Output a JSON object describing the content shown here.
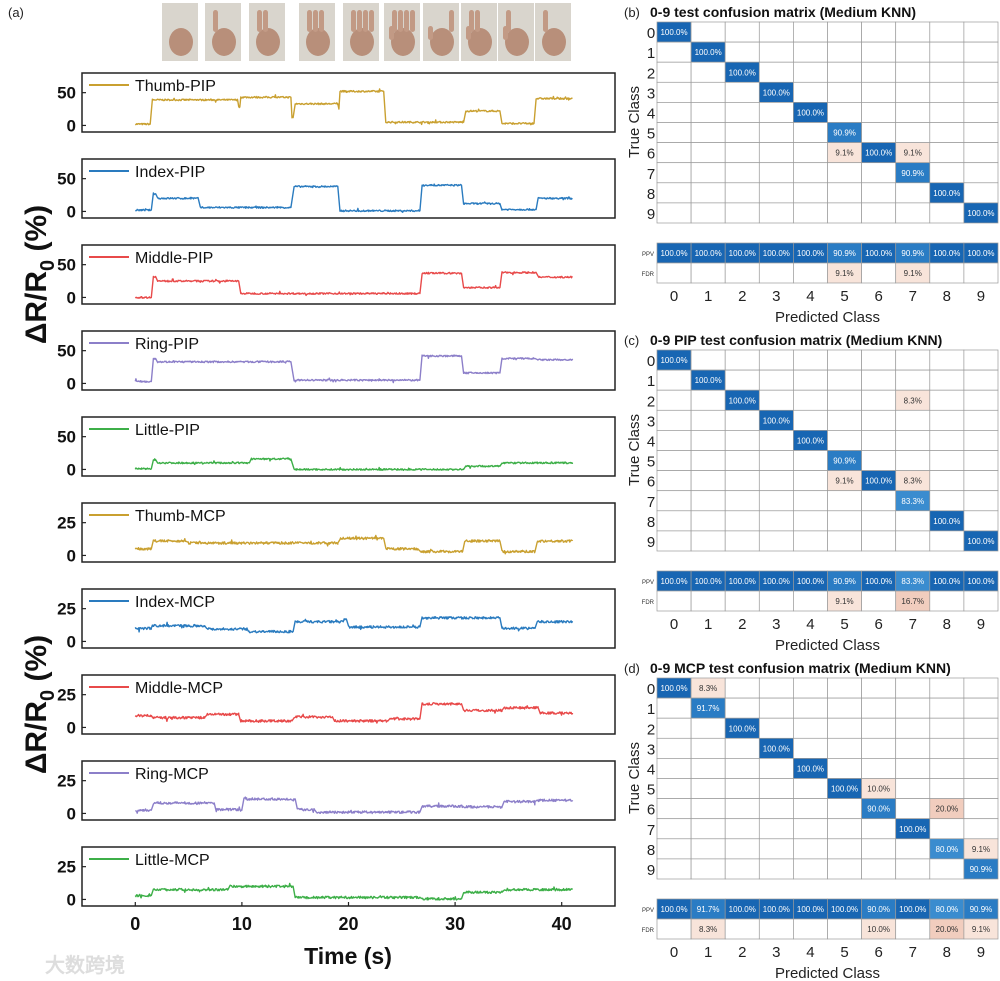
{
  "panel_labels": {
    "a": "(a)",
    "b": "(b)",
    "c": "(c)",
    "d": "(d)"
  },
  "watermark": "大数跨境",
  "hand_gestures": [
    "0",
    "1",
    "2",
    "3",
    "4",
    "5",
    "6",
    "7",
    "8",
    "9"
  ],
  "chart_data": [
    {
      "type": "line",
      "id": "a-pip",
      "ylabel": "ΔR/R0 (%)",
      "ylabel_main": "ΔR/R",
      "ylabel_sub": "0",
      "ylabel_unit": " (%)",
      "xlim": [
        -5,
        45
      ],
      "ylim": [
        -10,
        80
      ],
      "yticks": [
        "0",
        "50"
      ],
      "ytick_values": [
        0,
        50
      ],
      "series": [
        {
          "name": "Thumb-PIP",
          "color": "#C9A030",
          "levels": [
            [
              0,
              1.4,
              2
            ],
            [
              1.6,
              9.6,
              39
            ],
            [
              9.7,
              9.8,
              28
            ],
            [
              9.9,
              14.6,
              43
            ],
            [
              14.7,
              14.8,
              12
            ],
            [
              15,
              19,
              33
            ],
            [
              19.1,
              19.1,
              25
            ],
            [
              19.2,
              23.3,
              52
            ],
            [
              23.5,
              30.8,
              5
            ],
            [
              31,
              34.2,
              22
            ],
            [
              34.4,
              37.4,
              3
            ],
            [
              37.6,
              41,
              41
            ]
          ]
        },
        {
          "name": "Index-PIP",
          "color": "#2A7BBF",
          "levels": [
            [
              0,
              1.5,
              2
            ],
            [
              1.7,
              1.9,
              27
            ],
            [
              2.1,
              5.9,
              20
            ],
            [
              6.1,
              14.6,
              6
            ],
            [
              14.9,
              19,
              38
            ],
            [
              19.2,
              26.7,
              1
            ],
            [
              26.9,
              30.6,
              40
            ],
            [
              30.8,
              34.2,
              12
            ],
            [
              34.4,
              37.6,
              3
            ],
            [
              37.8,
              41,
              20
            ]
          ]
        },
        {
          "name": "Middle-PIP",
          "color": "#E84A4A",
          "levels": [
            [
              0,
              1.5,
              0
            ],
            [
              1.7,
              1.9,
              32
            ],
            [
              2.1,
              9.7,
              25
            ],
            [
              9.9,
              26.7,
              6
            ],
            [
              26.9,
              30.6,
              37
            ],
            [
              30.8,
              34.2,
              15
            ],
            [
              34.4,
              37.6,
              38
            ],
            [
              37.8,
              41,
              31
            ]
          ]
        },
        {
          "name": "Ring-PIP",
          "color": "#8C7FC9",
          "levels": [
            [
              0,
              1.5,
              3
            ],
            [
              1.7,
              1.9,
              38
            ],
            [
              2.1,
              14.6,
              33
            ],
            [
              14.9,
              26.7,
              5
            ],
            [
              26.9,
              30.6,
              42
            ],
            [
              30.8,
              34.2,
              16
            ],
            [
              34.4,
              37.5,
              38
            ],
            [
              37.7,
              41,
              36
            ]
          ]
        },
        {
          "name": "Little-PIP",
          "color": "#3DAF48",
          "levels": [
            [
              0,
              1.5,
              1
            ],
            [
              1.7,
              1.9,
              15
            ],
            [
              2.1,
              10.7,
              10
            ],
            [
              10.9,
              14.6,
              16
            ],
            [
              14.9,
              30.8,
              0
            ],
            [
              31,
              34.2,
              5
            ],
            [
              34.4,
              41,
              10
            ]
          ]
        }
      ]
    },
    {
      "type": "line",
      "id": "a-mcp",
      "ylabel": "ΔR/R0 (%)",
      "ylabel_main": "ΔR/R",
      "ylabel_sub": "0",
      "ylabel_unit": " (%)",
      "xlabel": "Time (s)",
      "xlim": [
        -5,
        45
      ],
      "xticks": [
        "0",
        "10",
        "20",
        "30",
        "40"
      ],
      "xtick_values": [
        0,
        10,
        20,
        30,
        40
      ],
      "ylim": [
        -5,
        40
      ],
      "yticks": [
        "0",
        "25"
      ],
      "ytick_values": [
        0,
        25
      ],
      "series": [
        {
          "name": "Thumb-MCP",
          "color": "#C9A030",
          "levels": [
            [
              0,
              1.5,
              5
            ],
            [
              1.7,
              4.7,
              11
            ],
            [
              4.9,
              19,
              9.5
            ],
            [
              19.2,
              23.3,
              13
            ],
            [
              23.5,
              26.5,
              5
            ],
            [
              26.7,
              30.7,
              3
            ],
            [
              30.9,
              34.2,
              11
            ],
            [
              34.4,
              37.5,
              3
            ],
            [
              37.7,
              41,
              11
            ]
          ]
        },
        {
          "name": "Index-MCP",
          "color": "#2A7BBF",
          "levels": [
            [
              0,
              1.5,
              10
            ],
            [
              1.6,
              6.5,
              12
            ],
            [
              6.7,
              10.5,
              9.5
            ],
            [
              10.6,
              14.8,
              7.5
            ],
            [
              15,
              19.5,
              15
            ],
            [
              19.6,
              19.8,
              17
            ],
            [
              20,
              26.7,
              11
            ],
            [
              26.9,
              34.2,
              18
            ],
            [
              34.4,
              37.5,
              10
            ],
            [
              37.7,
              41,
              15
            ]
          ]
        },
        {
          "name": "Middle-MCP",
          "color": "#E84A4A",
          "levels": [
            [
              0,
              1.5,
              9
            ],
            [
              1.7,
              6.5,
              7.5
            ],
            [
              6.7,
              9.7,
              10
            ],
            [
              9.9,
              14.7,
              5
            ],
            [
              14.9,
              18.5,
              8
            ],
            [
              18.7,
              23.7,
              5
            ],
            [
              23.9,
              26.7,
              6.5
            ],
            [
              26.9,
              30.6,
              18
            ],
            [
              30.8,
              34.4,
              13
            ],
            [
              34.6,
              37.8,
              15
            ],
            [
              38,
              41,
              11
            ]
          ]
        },
        {
          "name": "Ring-MCP",
          "color": "#8C7FC9",
          "levels": [
            [
              0,
              1.5,
              2.5
            ],
            [
              1.7,
              7.4,
              8
            ],
            [
              7.6,
              10,
              3
            ],
            [
              10.2,
              15,
              11
            ],
            [
              15.2,
              16.8,
              3
            ],
            [
              17,
              26.7,
              1
            ],
            [
              26.9,
              30.7,
              5.5
            ],
            [
              30.9,
              34.4,
              5
            ],
            [
              34.6,
              37.5,
              9
            ],
            [
              37.7,
              41,
              10
            ]
          ]
        },
        {
          "name": "Little-MCP",
          "color": "#3DAF48",
          "levels": [
            [
              0,
              1.5,
              3
            ],
            [
              1.7,
              8.7,
              7.5
            ],
            [
              8.9,
              14.8,
              10
            ],
            [
              15,
              26.7,
              1.5
            ],
            [
              26.9,
              30.6,
              0.5
            ],
            [
              30.8,
              34.4,
              5.5
            ],
            [
              34.6,
              41,
              7.5
            ]
          ]
        }
      ]
    },
    {
      "type": "heatmap",
      "id": "b",
      "title": "0-9 test confusion matrix (Medium KNN)",
      "xlabel": "Predicted Class",
      "ylabel": "True Class",
      "classes": [
        "0",
        "1",
        "2",
        "3",
        "4",
        "5",
        "6",
        "7",
        "8",
        "9"
      ],
      "matrix": [
        [
          "100.0%",
          "",
          "",
          "",
          "",
          "",
          "",
          "",
          "",
          ""
        ],
        [
          "",
          "100.0%",
          "",
          "",
          "",
          "",
          "",
          "",
          "",
          ""
        ],
        [
          "",
          "",
          "100.0%",
          "",
          "",
          "",
          "",
          "",
          "",
          ""
        ],
        [
          "",
          "",
          "",
          "100.0%",
          "",
          "",
          "",
          "",
          "",
          ""
        ],
        [
          "",
          "",
          "",
          "",
          "100.0%",
          "",
          "",
          "",
          "",
          ""
        ],
        [
          "",
          "",
          "",
          "",
          "",
          "90.9%",
          "",
          "",
          "",
          ""
        ],
        [
          "",
          "",
          "",
          "",
          "",
          "9.1%",
          "100.0%",
          "9.1%",
          "",
          ""
        ],
        [
          "",
          "",
          "",
          "",
          "",
          "",
          "",
          "90.9%",
          "",
          ""
        ],
        [
          "",
          "",
          "",
          "",
          "",
          "",
          "",
          "",
          "100.0%",
          ""
        ],
        [
          "",
          "",
          "",
          "",
          "",
          "",
          "",
          "",
          "",
          "100.0%"
        ]
      ],
      "ppv_label": "PPV",
      "fdr_label": "FDR",
      "ppv": [
        "100.0%",
        "100.0%",
        "100.0%",
        "100.0%",
        "100.0%",
        "90.9%",
        "100.0%",
        "90.9%",
        "100.0%",
        "100.0%"
      ],
      "fdr": [
        "",
        "",
        "",
        "",
        "",
        "9.1%",
        "",
        "9.1%",
        "",
        ""
      ]
    },
    {
      "type": "heatmap",
      "id": "c",
      "title": "0-9 PIP test confusion matrix (Medium KNN)",
      "xlabel": "Predicted Class",
      "ylabel": "True Class",
      "classes": [
        "0",
        "1",
        "2",
        "3",
        "4",
        "5",
        "6",
        "7",
        "8",
        "9"
      ],
      "matrix": [
        [
          "100.0%",
          "",
          "",
          "",
          "",
          "",
          "",
          "",
          "",
          ""
        ],
        [
          "",
          "100.0%",
          "",
          "",
          "",
          "",
          "",
          "",
          "",
          ""
        ],
        [
          "",
          "",
          "100.0%",
          "",
          "",
          "",
          "",
          "8.3%",
          "",
          ""
        ],
        [
          "",
          "",
          "",
          "100.0%",
          "",
          "",
          "",
          "",
          "",
          ""
        ],
        [
          "",
          "",
          "",
          "",
          "100.0%",
          "",
          "",
          "",
          "",
          ""
        ],
        [
          "",
          "",
          "",
          "",
          "",
          "90.9%",
          "",
          "",
          "",
          ""
        ],
        [
          "",
          "",
          "",
          "",
          "",
          "9.1%",
          "100.0%",
          "8.3%",
          "",
          ""
        ],
        [
          "",
          "",
          "",
          "",
          "",
          "",
          "",
          "83.3%",
          "",
          ""
        ],
        [
          "",
          "",
          "",
          "",
          "",
          "",
          "",
          "",
          "100.0%",
          ""
        ],
        [
          "",
          "",
          "",
          "",
          "",
          "",
          "",
          "",
          "",
          "100.0%"
        ]
      ],
      "ppv_label": "PPV",
      "fdr_label": "FDR",
      "ppv": [
        "100.0%",
        "100.0%",
        "100.0%",
        "100.0%",
        "100.0%",
        "90.9%",
        "100.0%",
        "83.3%",
        "100.0%",
        "100.0%"
      ],
      "fdr": [
        "",
        "",
        "",
        "",
        "",
        "9.1%",
        "",
        "16.7%",
        "",
        ""
      ]
    },
    {
      "type": "heatmap",
      "id": "d",
      "title": "0-9 MCP test confusion matrix (Medium KNN)",
      "xlabel": "Predicted Class",
      "ylabel": "True Class",
      "classes": [
        "0",
        "1",
        "2",
        "3",
        "4",
        "5",
        "6",
        "7",
        "8",
        "9"
      ],
      "matrix": [
        [
          "100.0%",
          "8.3%",
          "",
          "",
          "",
          "",
          "",
          "",
          "",
          ""
        ],
        [
          "",
          "91.7%",
          "",
          "",
          "",
          "",
          "",
          "",
          "",
          ""
        ],
        [
          "",
          "",
          "100.0%",
          "",
          "",
          "",
          "",
          "",
          "",
          ""
        ],
        [
          "",
          "",
          "",
          "100.0%",
          "",
          "",
          "",
          "",
          "",
          ""
        ],
        [
          "",
          "",
          "",
          "",
          "100.0%",
          "",
          "",
          "",
          "",
          ""
        ],
        [
          "",
          "",
          "",
          "",
          "",
          "100.0%",
          "10.0%",
          "",
          "",
          ""
        ],
        [
          "",
          "",
          "",
          "",
          "",
          "",
          "90.0%",
          "",
          "20.0%",
          ""
        ],
        [
          "",
          "",
          "",
          "",
          "",
          "",
          "",
          "100.0%",
          "",
          ""
        ],
        [
          "",
          "",
          "",
          "",
          "",
          "",
          "",
          "",
          "80.0%",
          "9.1%"
        ],
        [
          "",
          "",
          "",
          "",
          "",
          "",
          "",
          "",
          "",
          "90.9%"
        ]
      ],
      "ppv_label": "PPV",
      "fdr_label": "FDR",
      "ppv": [
        "100.0%",
        "91.7%",
        "100.0%",
        "100.0%",
        "100.0%",
        "100.0%",
        "90.0%",
        "100.0%",
        "80.0%",
        "90.9%"
      ],
      "fdr": [
        "",
        "8.3%",
        "",
        "",
        "",
        "",
        "10.0%",
        "",
        "20.0%",
        "9.1%"
      ]
    }
  ]
}
